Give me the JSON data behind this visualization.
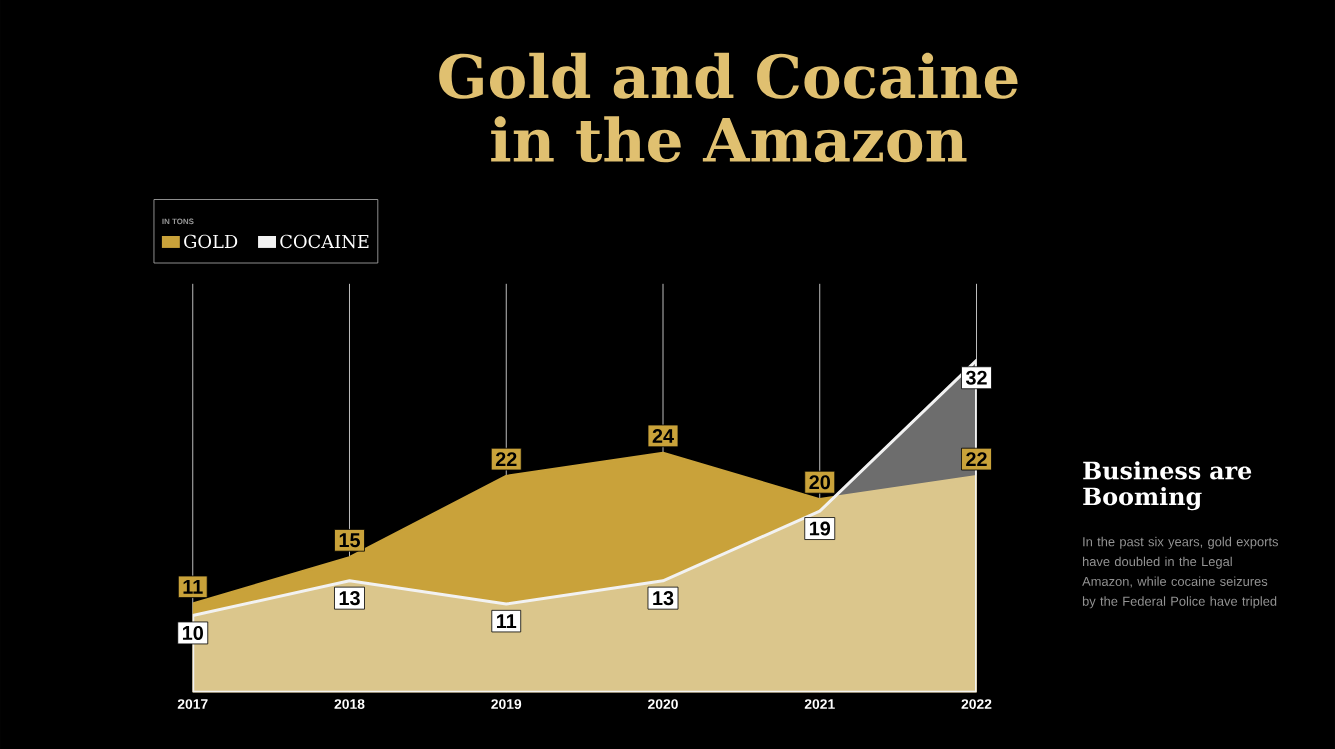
{
  "chart_data": {
    "type": "area",
    "title": "Gold and Cocaine in the Amazon",
    "categories": [
      "2017",
      "2018",
      "2019",
      "2020",
      "2021",
      "2022"
    ],
    "series": [
      {
        "name": "GOLD",
        "color": "#c9a23a",
        "values": [
          11,
          15,
          22,
          24,
          20,
          22
        ],
        "value_labels": [
          "11",
          "15",
          "22",
          "24",
          "20",
          "22"
        ]
      },
      {
        "name": "COCAINE",
        "color": "#f2f2f2",
        "values": [
          10,
          13,
          11,
          13,
          19,
          32
        ],
        "value_labels": [
          "10",
          "13",
          "11",
          "13",
          "19",
          "32"
        ]
      }
    ],
    "grid": "x",
    "legend": "top left",
    "legend_title": "IN TONS",
    "annotations": [
      "Business are Booming",
      "In the past six years, gold exports have doubled in the Legal Amazon, while cocaine seizures by the Federal Police have tripled"
    ]
  }
}
